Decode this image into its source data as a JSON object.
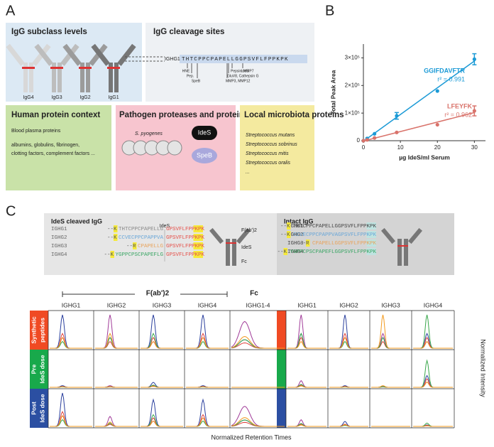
{
  "panel_labels": [
    "A",
    "B",
    "C"
  ],
  "panel_a": {
    "subclass": {
      "title": "IgG subclass levels",
      "items": [
        "IgG4",
        "IgG3",
        "IgG2",
        "IgG1"
      ]
    },
    "cleavage": {
      "title": "IgG cleavage sites",
      "gene": "IGHG1",
      "sequence": "THTCPPCPAPELLGGPSVFLFPPKPK",
      "sites": [
        "HNE",
        "Pep.",
        "SpeB",
        "Pepsin, MMP7",
        "GluV8, Cathepsin G",
        "MMP3, MMP12",
        "IdeS"
      ]
    },
    "human": {
      "title": "Human protein context",
      "lines": [
        "Blood plasma proteins",
        "albumins, globulins, fibrinogen,",
        "clotting factors, complement factors ..."
      ]
    },
    "pathogen": {
      "title": "Pathogen proteases and proteins",
      "organism": "S. pyogenes",
      "proteins": [
        "IdeS",
        "SpeB"
      ]
    },
    "microbiota": {
      "title": "Local microbiota proteins",
      "items": [
        "Streptococcus mutans",
        "Streptococcus sobrinus",
        "Streptococcus mitis",
        "Streptococcus oralis",
        "..."
      ]
    }
  },
  "chart_data": {
    "type": "scatter",
    "x_label": "µg IdeS/ml Serum",
    "y_label": "Total Peak Area",
    "x": [
      0,
      1,
      3,
      9,
      20,
      30
    ],
    "xlim": [
      0,
      33
    ],
    "xticks": [
      0,
      10,
      20,
      30
    ],
    "ylim": [
      0,
      350000
    ],
    "yticks": [
      0,
      {
        "value": 100000,
        "label": "1×10⁵"
      },
      {
        "value": 200000,
        "label": "2×10⁵"
      },
      {
        "value": 300000,
        "label": "3×10⁵"
      }
    ],
    "fit": true,
    "series": [
      {
        "name": "GGIFDAVFTR",
        "annotation": "r² = 0.991",
        "color": "#1b9ad6",
        "values": [
          0,
          8000,
          25000,
          90000,
          180000,
          295000
        ],
        "errors": [
          0,
          0,
          0,
          12000,
          0,
          20000
        ]
      },
      {
        "name": "LFEYFK",
        "annotation": "r² = 0.962",
        "color": "#d9736b",
        "values": [
          0,
          3000,
          10000,
          30000,
          58000,
          108000
        ],
        "errors": [
          0,
          0,
          0,
          0,
          0,
          18000
        ]
      }
    ]
  },
  "panel_c": {
    "cleaved_title": "IdeS cleaved IgG",
    "intact_title": "Intact IgG",
    "enzyme": "IdeS",
    "cleaved": [
      {
        "gene": "IGHG1",
        "prefix": "--K",
        "left": "THTCPPCPAPELLG",
        "right": "GPSVFLFPPKPK"
      },
      {
        "gene": "IGHG2",
        "prefix": "--K",
        "left": "CCVECPPCPAPPVA",
        "right": "GPSVFLFPPKPK"
      },
      {
        "gene": "IGHG3",
        "prefix": "--R",
        "left": "CPAPELLG",
        "right": "GPSVFLFPPKPK"
      },
      {
        "gene": "IGHG4",
        "prefix": "--K",
        "left": "YGPPCPSCPAPEFLG",
        "right": "GPSVFLFPPKPK"
      }
    ],
    "intact": [
      {
        "gene": "IGHG1",
        "prefix": "--K",
        "seq": "THTCPPCPAPELLGGPSVFLFPPKPK"
      },
      {
        "gene": "IGHG2",
        "prefix": "--K",
        "seq": "CCVECPPCPAPPVAGPSVFLFPPKPK"
      },
      {
        "gene": "IGHG3",
        "prefix": "--R",
        "seq": "CPAPELLGGPSVFLFPPKPK"
      },
      {
        "gene": "IGHG4",
        "prefix": "--K",
        "seq": "YGPPCPSCPAPEFLGGPSVFLFPPKPK"
      }
    ],
    "fragments": [
      "F(ab')2",
      "IdeS",
      "Fc"
    ],
    "groups": [
      "F(ab')2",
      "Fc"
    ],
    "columns": [
      "IGHG1",
      "IGHG2",
      "IGHG3",
      "IGHG4",
      "IGHG1-4",
      "IGHG1",
      "IGHG2",
      "IGHG3",
      "IGHG4"
    ],
    "rows": [
      [
        "Synthetic",
        "peptides"
      ],
      [
        "Pre",
        "IdeS dose"
      ],
      [
        "Post",
        "IdeS dose"
      ]
    ],
    "x_label": "Normalized Retention Times",
    "y_label": "Normalized Intensity"
  }
}
